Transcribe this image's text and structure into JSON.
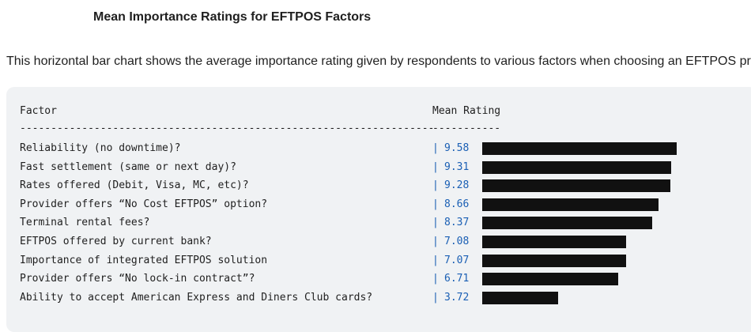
{
  "header": {
    "title": "Mean Importance Ratings for EFTPOS Factors"
  },
  "description": "This horizontal bar chart shows the average importance rating given by respondents to various factors when choosing an EFTPOS provider.",
  "code_block": {
    "columns": [
      "Factor",
      "Mean Rating"
    ],
    "separators": [
      "-------------------------------------------------------------------",
      "-----------"
    ],
    "column_divider": "|",
    "rows": [
      {
        "factor": "Reliability (no downtime)?",
        "rating": 9.58
      },
      {
        "factor": "Fast settlement (same or next day)?",
        "rating": 9.31
      },
      {
        "factor": "Rates offered (Debit, Visa, MC, etc)?",
        "rating": 9.28
      },
      {
        "factor": "Provider offers “No Cost EFTPOS” option?",
        "rating": 8.66
      },
      {
        "factor": "Terminal rental fees?",
        "rating": 8.37
      },
      {
        "factor": "EFTPOS offered by current bank?",
        "rating": 7.08
      },
      {
        "factor": "Importance of integrated EFTPOS solution",
        "rating": 7.07
      },
      {
        "factor": "Provider offers “No lock-in contract”?",
        "rating": 6.71
      },
      {
        "factor": "Ability to accept American Express and Diners Club cards?",
        "rating": 3.72
      }
    ]
  }
}
